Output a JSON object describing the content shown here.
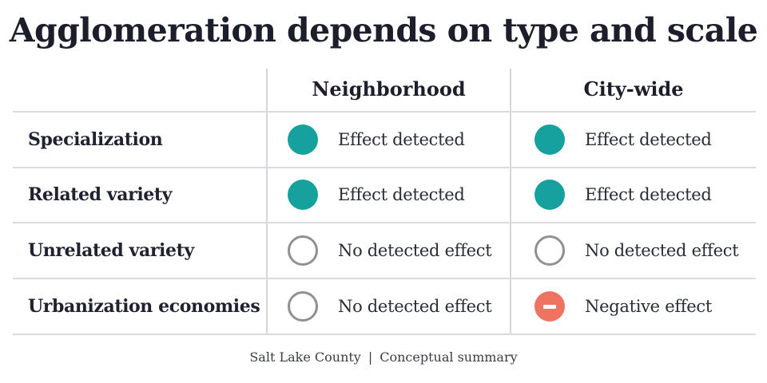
{
  "title": "Agglomeration depends on type and scale",
  "columns": [
    "Neighborhood",
    "City-wide"
  ],
  "colors": {
    "effect_detected": "#17a19e",
    "no_effect": "#8f9094",
    "negative_effect": "#ee7361"
  },
  "rows": [
    {
      "label": "Specialization",
      "cells": [
        {
          "status": "effect-detected",
          "text": "Effect detected"
        },
        {
          "status": "effect-detected",
          "text": "Effect detected"
        }
      ]
    },
    {
      "label": "Related variety",
      "cells": [
        {
          "status": "effect-detected",
          "text": "Effect detected"
        },
        {
          "status": "effect-detected",
          "text": "Effect detected"
        }
      ]
    },
    {
      "label": "Unrelated variety",
      "cells": [
        {
          "status": "no-effect",
          "text": "No detected effect"
        },
        {
          "status": "no-effect",
          "text": "No detected effect"
        }
      ]
    },
    {
      "label": "Urbanization economies",
      "cells": [
        {
          "status": "no-effect",
          "text": "No detected effect"
        },
        {
          "status": "negative-effect",
          "text": "Negative effect"
        }
      ]
    }
  ],
  "footer": {
    "source": "Salt Lake County",
    "separator": "|",
    "note": "Conceptual summary"
  }
}
